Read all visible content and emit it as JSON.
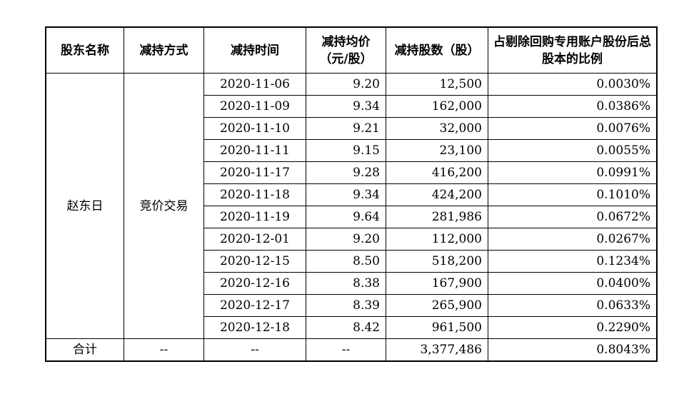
{
  "headers": [
    "股东名称",
    "减持方式",
    "减持时间",
    "减持均价（元/股）",
    "减持股数（股）",
    "占剔除回购专用账户股份后总股本的比例"
  ],
  "holder_name": "赵东日",
  "method": "竞价交易",
  "rows": [
    {
      "date": "2020-11-06",
      "price": "9.20",
      "shares": "12,500",
      "ratio": "0.0030%"
    },
    {
      "date": "2020-11-09",
      "price": "9.34",
      "shares": "162,000",
      "ratio": "0.0386%"
    },
    {
      "date": "2020-11-10",
      "price": "9.21",
      "shares": "32,000",
      "ratio": "0.0076%"
    },
    {
      "date": "2020-11-11",
      "price": "9.15",
      "shares": "23,100",
      "ratio": "0.0055%"
    },
    {
      "date": "2020-11-17",
      "price": "9.28",
      "shares": "416,200",
      "ratio": "0.0991%"
    },
    {
      "date": "2020-11-18",
      "price": "9.34",
      "shares": "424,200",
      "ratio": "0.1010%"
    },
    {
      "date": "2020-11-19",
      "price": "9.64",
      "shares": "281,986",
      "ratio": "0.0672%"
    },
    {
      "date": "2020-12-01",
      "price": "9.20",
      "shares": "112,000",
      "ratio": "0.0267%"
    },
    {
      "date": "2020-12-15",
      "price": "8.50",
      "shares": "518,200",
      "ratio": "0.1234%"
    },
    {
      "date": "2020-12-16",
      "price": "8.38",
      "shares": "167,900",
      "ratio": "0.0400%"
    },
    {
      "date": "2020-12-17",
      "price": "8.39",
      "shares": "265,900",
      "ratio": "0.0633%"
    },
    {
      "date": "2020-12-18",
      "price": "8.42",
      "shares": "961,500",
      "ratio": "0.2290%"
    }
  ],
  "total": {
    "label": "合计",
    "method": "--",
    "date": "--",
    "price": "--",
    "shares": "3,377,486",
    "ratio": "0.8043%"
  }
}
